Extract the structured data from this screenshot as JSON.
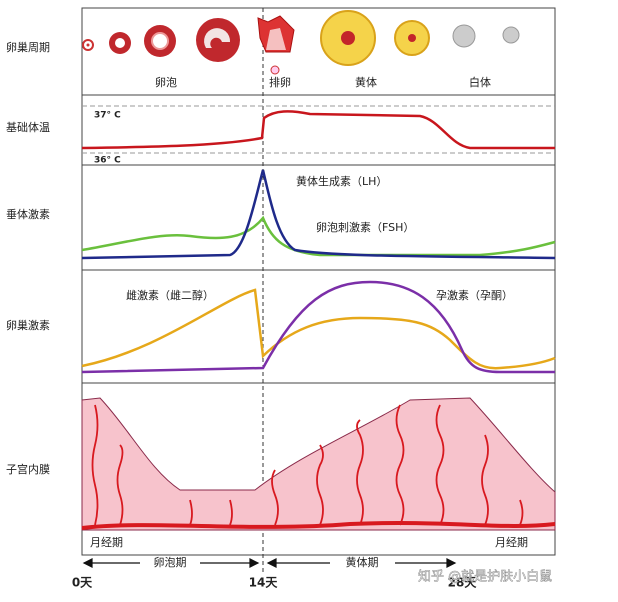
{
  "rows": [
    "卵巢周期",
    "基础体温",
    "垂体激素",
    "卵巢激素",
    "子宫内膜"
  ],
  "ovary_stages": [
    "卵泡",
    "排卵",
    "黄体",
    "白体"
  ],
  "temperatures": [
    "37° C",
    "36° C"
  ],
  "hormones": {
    "lh": "黄体生成素（LH）",
    "fsh": "卵泡刺激素（FSH）",
    "estrogen": "雌激素（雌二醇）",
    "progesterone": "孕激素（孕酮）"
  },
  "phases": {
    "menstrual_start": "月经期",
    "follicular": "卵泡期",
    "luteal": "黄体期",
    "menstrual_end": "月经期"
  },
  "days": [
    "0天",
    "14天",
    "28天"
  ],
  "watermark": "知乎 @就是护肤小白鼠"
}
